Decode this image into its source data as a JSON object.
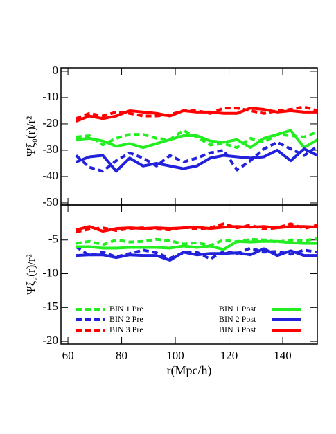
{
  "chart_data": [
    {
      "type": "line",
      "ylabel": "Ψξ₀(r)/r²",
      "x": [
        63,
        68,
        73,
        78,
        83,
        88,
        93,
        98,
        103,
        108,
        113,
        118,
        123,
        128,
        133,
        138,
        143,
        148,
        153
      ],
      "xlim": [
        57.4,
        152.9
      ],
      "xticks": [
        60,
        80,
        100,
        120,
        140
      ],
      "ylim": [
        -50.8,
        1.3
      ],
      "yticks": [
        0,
        -10,
        -20,
        -30,
        -40,
        -50
      ],
      "series": [
        {
          "color": "#ff0000",
          "dash": false,
          "values": [
            -19,
            -17,
            -18,
            -17,
            -15,
            -15.5,
            -16,
            -17,
            -15,
            -15.5,
            -15.5,
            -16,
            -16,
            -14,
            -14.5,
            -15.5,
            -15,
            -15.5,
            -15.5
          ]
        },
        {
          "color": "#ff0000",
          "dash": true,
          "values": [
            -18,
            -16,
            -17,
            -15.5,
            -16,
            -17,
            -17,
            -16.5,
            -15,
            -15,
            -16,
            -14,
            -14,
            -15,
            -16,
            -15,
            -14.5,
            -13.5,
            -15
          ]
        },
        {
          "color": "#22ee22",
          "dash": false,
          "values": [
            -26,
            -25.5,
            -26.5,
            -28.5,
            -27.5,
            -29,
            -27.5,
            -26,
            -24.5,
            -24.5,
            -26.5,
            -27,
            -26,
            -29,
            -25.5,
            -24,
            -22.5,
            -29,
            -26
          ]
        },
        {
          "color": "#22ee22",
          "dash": true,
          "values": [
            -25,
            -24.5,
            -28,
            -25.5,
            -24,
            -24,
            -25.5,
            -26,
            -22.5,
            -25,
            -28,
            -27.5,
            -29,
            -25.5,
            -27,
            -24,
            -24.5,
            -25,
            -23
          ]
        },
        {
          "color": "#2222dd",
          "dash": false,
          "values": [
            -34.5,
            -32.5,
            -32,
            -38,
            -33,
            -36,
            -35,
            -36,
            -37,
            -36,
            -33,
            -32,
            -32.5,
            -33,
            -32.5,
            -30,
            -34,
            -29.5,
            -32
          ]
        },
        {
          "color": "#2222dd",
          "dash": true,
          "values": [
            -32,
            -36.5,
            -38,
            -34,
            -31,
            -33,
            -36,
            -32,
            -34.5,
            -33,
            -31,
            -30,
            -37.5,
            -34,
            -29.5,
            -27,
            -29.5,
            -32,
            -28.5
          ]
        }
      ]
    },
    {
      "type": "line",
      "ylabel": "Ψξ₂(r)/r²",
      "xlabel": "r(Mpc/h)",
      "x": [
        63,
        68,
        73,
        78,
        83,
        88,
        93,
        98,
        103,
        108,
        113,
        118,
        123,
        128,
        133,
        138,
        143,
        148,
        153
      ],
      "xlim": [
        57.4,
        152.9
      ],
      "xticks": [
        60,
        80,
        100,
        120,
        140
      ],
      "ylim": [
        -20.4,
        0.2
      ],
      "yticks": [
        -5,
        -10,
        -15,
        -20
      ],
      "series": [
        {
          "name": "BIN 1 Pre",
          "color": "#22ee22",
          "dash": true,
          "values": [
            -5.5,
            -5.2,
            -5.7,
            -5,
            -5.3,
            -5.2,
            -4.9,
            -5.1,
            -5.6,
            -5.4,
            -5.8,
            -5,
            -5.3,
            -4.9,
            -5,
            -5.3,
            -5,
            -5.1,
            -4.8
          ]
        },
        {
          "name": "BIN 2 Pre",
          "color": "#2222dd",
          "dash": true,
          "values": [
            -6,
            -7.3,
            -6.8,
            -7.5,
            -7,
            -6.5,
            -6.9,
            -7.7,
            -6.9,
            -6.8,
            -7.8,
            -6.7,
            -7,
            -6.2,
            -6.8,
            -6.7,
            -7.1,
            -6.5,
            -6.8
          ]
        },
        {
          "name": "BIN 3 Pre",
          "color": "#ff0000",
          "dash": true,
          "values": [
            -3.8,
            -3.4,
            -3.2,
            -3.6,
            -3.3,
            -3.2,
            -3.4,
            -3.5,
            -3.1,
            -3.4,
            -3.2,
            -2.6,
            -3.2,
            -2.8,
            -3.4,
            -3.2,
            -2.6,
            -3.3,
            -2.8
          ]
        },
        {
          "name": "BIN 1 Post",
          "color": "#22ee22",
          "dash": false,
          "values": [
            -6,
            -6,
            -6.2,
            -6.2,
            -6.1,
            -6.1,
            -6.1,
            -6.2,
            -5.9,
            -6.1,
            -5.9,
            -6.4,
            -5.2,
            -5.3,
            -5.2,
            -5.2,
            -5.4,
            -5.5,
            -5.5
          ]
        },
        {
          "name": "BIN 2 Post",
          "color": "#2222dd",
          "dash": false,
          "values": [
            -7.3,
            -7.2,
            -7.2,
            -7.6,
            -7.2,
            -7.3,
            -7.3,
            -8,
            -6.8,
            -7.2,
            -7,
            -7,
            -6.9,
            -7.2,
            -6.3,
            -7.3,
            -6.6,
            -7.3,
            -7.3
          ]
        },
        {
          "name": "BIN 3 Post",
          "color": "#ff0000",
          "dash": false,
          "values": [
            -3.5,
            -3,
            -3.7,
            -3.3,
            -3.2,
            -3.3,
            -3.2,
            -3.3,
            -3.2,
            -3.1,
            -3.3,
            -3.1,
            -3,
            -3.1,
            -3,
            -3.2,
            -3,
            -3,
            -3.1
          ]
        }
      ]
    }
  ]
}
